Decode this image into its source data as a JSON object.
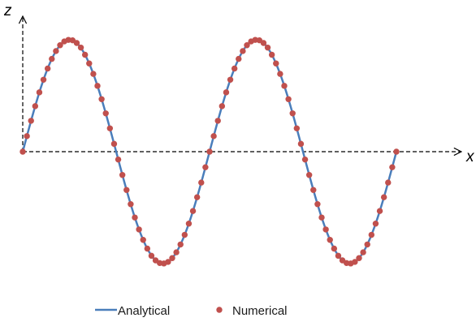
{
  "chart_data": {
    "type": "line",
    "title": "",
    "xlabel": "x",
    "ylabel": "z",
    "x_range": [
      0,
      4
    ],
    "y_range": [
      -1,
      1
    ],
    "grid": false,
    "legend_position": "bottom-center",
    "series": [
      {
        "name": "Analytical",
        "kind": "line",
        "color": "#4a7ebb",
        "function": "z = sin(pi * x)",
        "x_start": 0,
        "x_end": 4
      },
      {
        "name": "Numerical",
        "kind": "markers",
        "color": "#c0504d",
        "x": [
          0,
          0.0444,
          0.0889,
          0.1333,
          0.1778,
          0.2222,
          0.2667,
          0.3111,
          0.3556,
          0.4,
          0.4444,
          0.4889,
          0.5333,
          0.5778,
          0.6222,
          0.6667,
          0.7111,
          0.7556,
          0.8,
          0.8444,
          0.8889,
          0.9333,
          0.9778,
          1.0222,
          1.0667,
          1.1111,
          1.1556,
          1.2,
          1.2444,
          1.2889,
          1.3333,
          1.3778,
          1.4222,
          1.4667,
          1.5111,
          1.5556,
          1.6,
          1.6444,
          1.6889,
          1.7333,
          1.7778,
          1.8222,
          1.8667,
          1.9111,
          1.9556,
          2,
          2.0444,
          2.0889,
          2.1333,
          2.1778,
          2.2222,
          2.2667,
          2.3111,
          2.3556,
          2.4,
          2.4444,
          2.4889,
          2.5333,
          2.5778,
          2.6222,
          2.6667,
          2.7111,
          2.7556,
          2.8,
          2.8444,
          2.8889,
          2.9333,
          2.9778,
          3.0222,
          3.0667,
          3.1111,
          3.1556,
          3.2,
          3.2444,
          3.2889,
          3.3333,
          3.3778,
          3.4222,
          3.4667,
          3.5111,
          3.5556,
          3.6,
          3.6444,
          3.6889,
          3.7333,
          3.7778,
          3.8222,
          3.8667,
          3.9111,
          3.9556,
          4
        ],
        "y": [
          0,
          0.139,
          0.276,
          0.407,
          0.53,
          0.643,
          0.743,
          0.829,
          0.899,
          0.951,
          0.985,
          0.999,
          0.995,
          0.971,
          0.93,
          0.866,
          0.788,
          0.695,
          0.588,
          0.469,
          0.342,
          0.208,
          0.07,
          -0.07,
          -0.208,
          -0.342,
          -0.469,
          -0.588,
          -0.695,
          -0.788,
          -0.866,
          -0.93,
          -0.971,
          -0.995,
          -0.999,
          -0.985,
          -0.951,
          -0.899,
          -0.829,
          -0.743,
          -0.643,
          -0.53,
          -0.407,
          -0.276,
          -0.139,
          0,
          0.139,
          0.276,
          0.407,
          0.53,
          0.643,
          0.743,
          0.829,
          0.899,
          0.951,
          0.985,
          0.999,
          0.995,
          0.971,
          0.93,
          0.866,
          0.788,
          0.695,
          0.588,
          0.469,
          0.342,
          0.208,
          0.07,
          -0.07,
          -0.208,
          -0.342,
          -0.469,
          -0.588,
          -0.695,
          -0.788,
          -0.866,
          -0.93,
          -0.971,
          -0.995,
          -0.999,
          -0.985,
          -0.951,
          -0.899,
          -0.829,
          -0.743,
          -0.643,
          -0.53,
          -0.407,
          -0.276,
          -0.139,
          0
        ]
      }
    ],
    "legend": {
      "analytical_label": "Analytical",
      "numerical_label": "Numerical"
    }
  }
}
